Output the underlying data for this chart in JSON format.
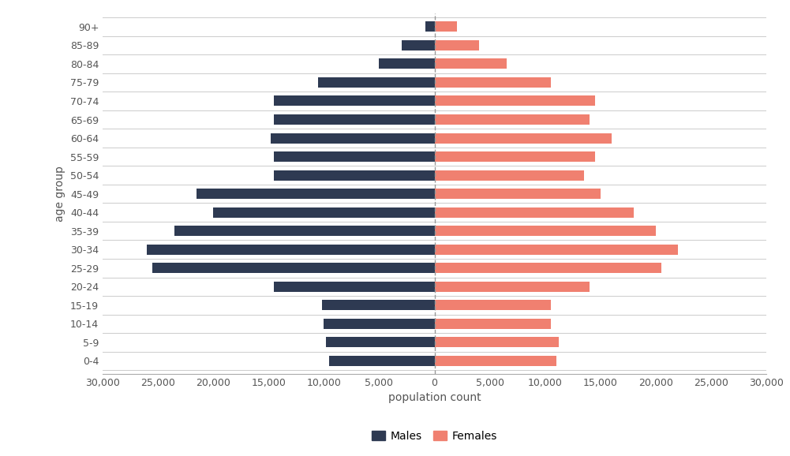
{
  "age_groups": [
    "0-4",
    "5-9",
    "10-14",
    "15-19",
    "20-24",
    "25-29",
    "30-34",
    "35-39",
    "40-44",
    "45-49",
    "50-54",
    "55-59",
    "60-64",
    "65-69",
    "70-74",
    "75-79",
    "80-84",
    "85-89",
    "90+"
  ],
  "males": [
    9500,
    9800,
    10000,
    10200,
    14500,
    25500,
    26000,
    23500,
    20000,
    21500,
    14500,
    14500,
    14800,
    14500,
    14500,
    10500,
    5000,
    3000,
    800
  ],
  "females": [
    11000,
    11200,
    10500,
    10500,
    14000,
    20500,
    22000,
    20000,
    18000,
    15000,
    13500,
    14500,
    16000,
    14000,
    14500,
    10500,
    6500,
    4000,
    2000
  ],
  "male_color": "#2e3a52",
  "female_color": "#f08070",
  "background_color": "#ffffff",
  "grid_color": "#cccccc",
  "xlabel": "population count",
  "ylabel": "age group",
  "xlim": 30000,
  "xtick_positions": [
    -30000,
    -25000,
    -20000,
    -15000,
    -10000,
    -5000,
    0,
    5000,
    10000,
    15000,
    20000,
    25000,
    30000
  ],
  "xtick_labels": [
    "30,000",
    "25,000",
    "20,000",
    "15,000",
    "10,000",
    "5,000",
    "0",
    "5,000",
    "10,000",
    "15,000",
    "20,000",
    "25,000",
    "30,000"
  ],
  "legend_labels": [
    "Males",
    "Females"
  ],
  "label_fontsize": 10,
  "tick_fontsize": 9,
  "bar_height": 0.55
}
